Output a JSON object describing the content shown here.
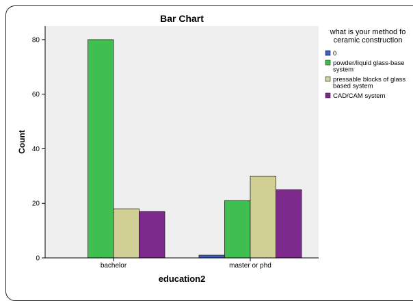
{
  "chart_data": {
    "type": "bar",
    "title": "Bar Chart",
    "xlabel": "education2",
    "ylabel": "Count",
    "categories": [
      "bachelor",
      "master or phd"
    ],
    "ylim": [
      0,
      85
    ],
    "yticks": [
      0,
      20,
      40,
      60,
      80
    ],
    "grid": false,
    "legend_position": "right",
    "legend_title": [
      "what is your method fo",
      "ceramic construction"
    ],
    "series": [
      {
        "name": "0",
        "name_lines": [
          "0"
        ],
        "color": "#3a5bbf",
        "values": [
          0,
          1
        ]
      },
      {
        "name": "powder/liquid glass-based system",
        "name_lines": [
          "powder/liquid glass-base",
          "system"
        ],
        "color": "#3fbf4f",
        "values": [
          80,
          21
        ]
      },
      {
        "name": "pressable blocks of glass based system",
        "name_lines": [
          "pressable blocks of glass",
          "based system"
        ],
        "color": "#d2cf96",
        "values": [
          18,
          30
        ]
      },
      {
        "name": "CAD/CAM system",
        "name_lines": [
          "CAD/CAM system"
        ],
        "color": "#7d2a8c",
        "values": [
          17,
          25
        ]
      }
    ]
  }
}
